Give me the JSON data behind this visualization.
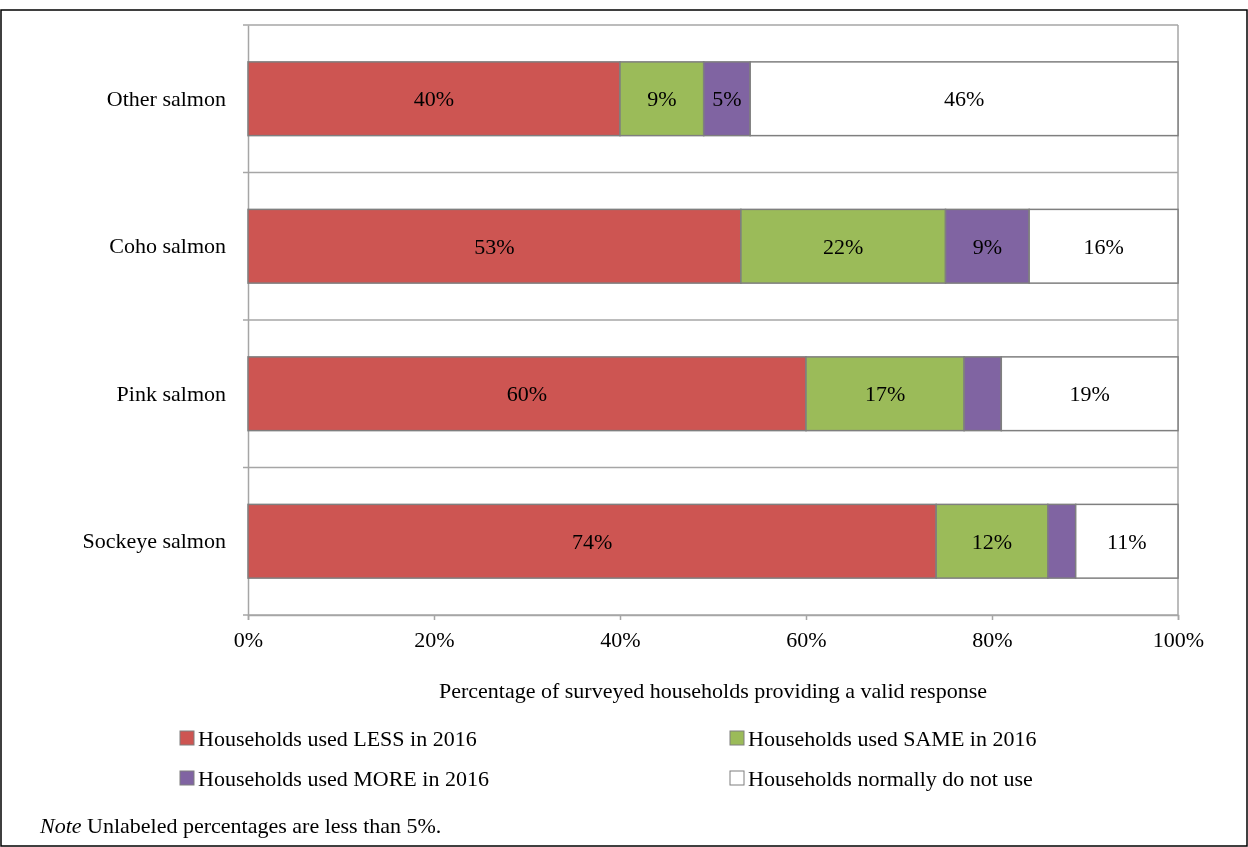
{
  "chart_data": {
    "type": "bar",
    "orientation": "horizontal",
    "stacked": true,
    "categories": [
      "Other salmon",
      "Coho salmon",
      "Pink salmon",
      "Sockeye salmon"
    ],
    "series": [
      {
        "name": "Households used LESS in 2016",
        "color": "#cd5552",
        "values": [
          40,
          53,
          60,
          74
        ],
        "value_labels": [
          "40%",
          "53%",
          "60%",
          "74%"
        ]
      },
      {
        "name": "Households used SAME in 2016",
        "color": "#9bbb59",
        "values": [
          9,
          22,
          17,
          12
        ],
        "value_labels": [
          "9%",
          "22%",
          "17%",
          "12%"
        ]
      },
      {
        "name": "Households used MORE in 2016",
        "color": "#8064a2",
        "values": [
          5,
          9,
          4,
          3
        ],
        "value_labels": [
          "5%",
          "9%",
          null,
          null
        ]
      },
      {
        "name": "Households normally do not use",
        "color": "#ffffff",
        "values": [
          46,
          16,
          19,
          11
        ],
        "value_labels": [
          "46%",
          "16%",
          "19%",
          "11%"
        ]
      }
    ],
    "xlim": [
      0,
      100
    ],
    "xticks": [
      {
        "value": 0,
        "label": "0%"
      },
      {
        "value": 20,
        "label": "20%"
      },
      {
        "value": 40,
        "label": "40%"
      },
      {
        "value": 60,
        "label": "60%"
      },
      {
        "value": 80,
        "label": "80%"
      },
      {
        "value": 100,
        "label": "100%"
      }
    ],
    "xlabel": "Percentage of  surveyed households providing a valid response",
    "grid": "y",
    "legend": "bottom",
    "annotations": [
      "Note Unlabeled percentages are less than 5%."
    ]
  }
}
